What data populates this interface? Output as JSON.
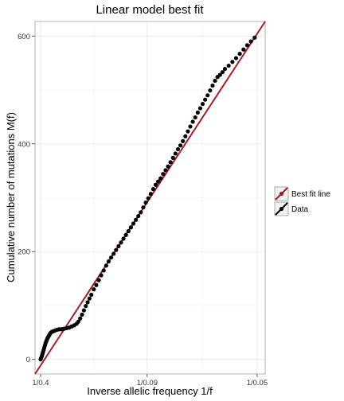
{
  "chart_data": {
    "type": "scatter",
    "title": "Linear model best fit",
    "xlabel": "Inverse allelic frequency 1/f",
    "ylabel": "Cumulative number of mutations M(f)",
    "x_scale": "reciprocal",
    "x_ticks": [
      {
        "f": 0.4,
        "label": "1/0.4"
      },
      {
        "f": 0.09,
        "label": "1/0.09"
      },
      {
        "f": 0.05,
        "label": "1/0.05"
      }
    ],
    "y_ticks": [
      0,
      200,
      400,
      600
    ],
    "xlim_inv_f": [
      2.05,
      20.65
    ],
    "ylim": [
      -27,
      627
    ],
    "grid": true,
    "legend_position": "right",
    "legend": [
      {
        "label": "Best fit line",
        "color": "#a51c23"
      },
      {
        "label": "Data",
        "color": "#000000"
      }
    ],
    "series": [
      {
        "name": "Best fit line",
        "type": "line",
        "color": "#a51c23",
        "points": [
          [
            2.05,
            -27
          ],
          [
            20.65,
            627
          ]
        ]
      },
      {
        "name": "Data",
        "type": "scatter",
        "color": "#000000",
        "points": [
          [
            2.5,
            0
          ],
          [
            2.55,
            3
          ],
          [
            2.6,
            6
          ],
          [
            2.65,
            10
          ],
          [
            2.7,
            14
          ],
          [
            2.75,
            18
          ],
          [
            2.8,
            22
          ],
          [
            2.85,
            26
          ],
          [
            2.9,
            30
          ],
          [
            2.95,
            33
          ],
          [
            3.0,
            36
          ],
          [
            3.05,
            39
          ],
          [
            3.1,
            41
          ],
          [
            3.15,
            43
          ],
          [
            3.2,
            45
          ],
          [
            3.25,
            47
          ],
          [
            3.3,
            49
          ],
          [
            3.4,
            51
          ],
          [
            3.5,
            52
          ],
          [
            3.6,
            53
          ],
          [
            3.7,
            54
          ],
          [
            3.85,
            55
          ],
          [
            4.0,
            56
          ],
          [
            4.2,
            56
          ],
          [
            4.4,
            57
          ],
          [
            4.6,
            58
          ],
          [
            4.8,
            59
          ],
          [
            5.0,
            61
          ],
          [
            5.2,
            63
          ],
          [
            5.4,
            66
          ],
          [
            5.55,
            70
          ],
          [
            5.7,
            76
          ],
          [
            5.85,
            83
          ],
          [
            6.0,
            91
          ],
          [
            6.15,
            99
          ],
          [
            6.3,
            106
          ],
          [
            6.45,
            113
          ],
          [
            6.6,
            120
          ],
          [
            6.8,
            130
          ],
          [
            7.0,
            138
          ],
          [
            7.2,
            147
          ],
          [
            7.4,
            156
          ],
          [
            7.6,
            165
          ],
          [
            7.8,
            174
          ],
          [
            8.0,
            182
          ],
          [
            8.2,
            189
          ],
          [
            8.4,
            196
          ],
          [
            8.6,
            203
          ],
          [
            8.8,
            210
          ],
          [
            9.0,
            217
          ],
          [
            9.2,
            224
          ],
          [
            9.4,
            231
          ],
          [
            9.6,
            238
          ],
          [
            9.8,
            245
          ],
          [
            10.0,
            252
          ],
          [
            10.2,
            259
          ],
          [
            10.4,
            266
          ],
          [
            10.6,
            273
          ],
          [
            10.8,
            282
          ],
          [
            11.0,
            291
          ],
          [
            11.2,
            299
          ],
          [
            11.4,
            307
          ],
          [
            11.6,
            316
          ],
          [
            11.8,
            324
          ],
          [
            12.0,
            330
          ],
          [
            12.2,
            336
          ],
          [
            12.4,
            344
          ],
          [
            12.6,
            351
          ],
          [
            12.8,
            358
          ],
          [
            13.0,
            366
          ],
          [
            13.2,
            374
          ],
          [
            13.4,
            382
          ],
          [
            13.6,
            390
          ],
          [
            13.8,
            397
          ],
          [
            14.0,
            405
          ],
          [
            14.2,
            414
          ],
          [
            14.4,
            423
          ],
          [
            14.6,
            432
          ],
          [
            14.8,
            441
          ],
          [
            15.0,
            449
          ],
          [
            15.2,
            458
          ],
          [
            15.4,
            466
          ],
          [
            15.6,
            474
          ],
          [
            15.8,
            482
          ],
          [
            16.0,
            490
          ],
          [
            16.2,
            499
          ],
          [
            16.4,
            508
          ],
          [
            16.6,
            517
          ],
          [
            16.8,
            524
          ],
          [
            17.0,
            528
          ],
          [
            17.2,
            533
          ],
          [
            17.4,
            539
          ],
          [
            17.7,
            545
          ],
          [
            18.0,
            552
          ],
          [
            18.3,
            559
          ],
          [
            18.6,
            567
          ],
          [
            18.9,
            575
          ],
          [
            19.2,
            583
          ],
          [
            19.5,
            590
          ],
          [
            19.8,
            597
          ]
        ]
      }
    ]
  }
}
